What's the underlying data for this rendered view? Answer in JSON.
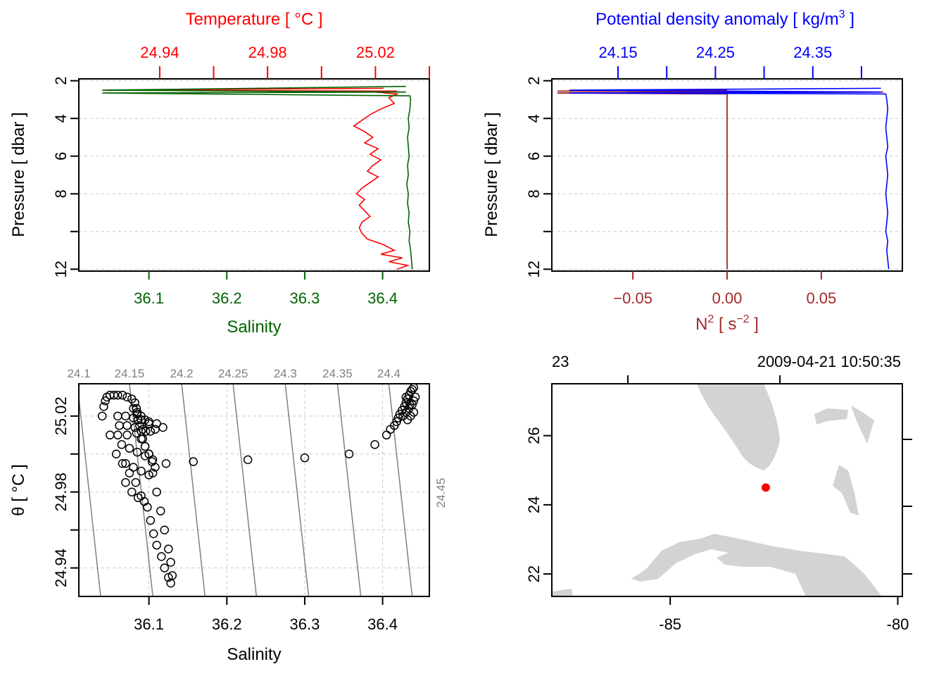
{
  "colors": {
    "temperature": "#ff0000",
    "salinity": "#006400",
    "density": "#0000ff",
    "n2": "#a52a2a",
    "land": "#d3d3d3",
    "station": "#ff0000",
    "isopycnal": "#808080"
  },
  "chart_data": [
    {
      "id": "profile_TS",
      "type": "line",
      "title": "Temperature [ °C ]",
      "xlabel": "Salinity",
      "ylabel": "Pressure [ dbar ]",
      "x_ticks": [
        "36.1",
        "36.2",
        "36.3",
        "36.4"
      ],
      "x_top_ticks": [
        "24.94",
        "24.98",
        "25.02"
      ],
      "y_ticks": [
        "2",
        "4",
        "6",
        "8",
        "12"
      ],
      "ylim": [
        12.1,
        1.9
      ],
      "salinity_xlim": [
        36.01,
        36.46
      ],
      "temperature_xlim": [
        24.91,
        25.04
      ],
      "series": [
        {
          "name": "Temperature",
          "color": "#ff0000",
          "pressure": [
            2.4,
            2.5,
            2.55,
            2.6,
            2.7,
            2.9,
            3.2,
            3.5,
            3.8,
            4.1,
            4.4,
            4.7,
            5.0,
            5.3,
            5.6,
            5.9,
            6.2,
            6.5,
            6.8,
            7.1,
            7.4,
            7.7,
            8.0,
            8.3,
            8.6,
            8.9,
            9.2,
            9.5,
            9.8,
            10.1,
            10.4,
            10.7,
            11.0,
            11.2,
            11.4,
            11.6,
            11.8,
            12.0
          ],
          "temperature": [
            25.023,
            24.92,
            25.028,
            25.02,
            25.028,
            25.025,
            25.027,
            25.022,
            25.018,
            25.015,
            25.012,
            25.016,
            25.019,
            25.016,
            25.021,
            25.018,
            25.022,
            25.019,
            25.017,
            25.021,
            25.018,
            25.015,
            25.013,
            25.016,
            25.014,
            25.016,
            25.018,
            25.015,
            25.014,
            25.015,
            25.017,
            25.023,
            25.027,
            25.022,
            25.03,
            25.025,
            25.032,
            25.028
          ]
        },
        {
          "name": "Salinity",
          "color": "#006400",
          "pressure": [
            2.3,
            2.5,
            2.6,
            2.65,
            2.8,
            3.0,
            3.5,
            4.0,
            4.5,
            5.0,
            5.5,
            6.0,
            6.5,
            7.0,
            7.5,
            8.0,
            8.5,
            9.0,
            9.5,
            10.0,
            10.5,
            11.0,
            11.5,
            12.0
          ],
          "salinity": [
            36.43,
            36.04,
            36.43,
            36.04,
            36.435,
            36.436,
            36.435,
            36.433,
            36.434,
            36.432,
            36.433,
            36.434,
            36.432,
            36.433,
            36.431,
            36.433,
            36.432,
            36.434,
            36.433,
            36.435,
            36.434,
            36.436,
            36.437,
            36.438
          ]
        }
      ]
    },
    {
      "id": "profile_density_N2",
      "type": "line",
      "title": "Potential density anomaly [ kg/m",
      "title_sup": "3",
      "title_end": " ]",
      "xlabel": "N",
      "xlabel_sup": "2",
      "xlabel_mid": " [ s",
      "xlabel_sup2": "−2",
      "xlabel_end": " ]",
      "ylabel": "Pressure [ dbar ]",
      "x_ticks": [
        "−0.05",
        "0.00",
        "0.05"
      ],
      "x_top_ticks": [
        "24.15",
        "24.25",
        "24.35"
      ],
      "y_ticks": [
        "2",
        "4",
        "6",
        "8",
        "12"
      ],
      "ylim": [
        12.1,
        1.9
      ],
      "n2_xlim": [
        -0.093,
        0.093
      ],
      "density_xlim": [
        24.082,
        24.442
      ],
      "series": [
        {
          "name": "Potential density anomaly",
          "color": "#0000ff",
          "pressure": [
            2.4,
            2.5,
            2.6,
            2.65,
            2.7,
            3.0,
            3.5,
            4.0,
            4.5,
            5.0,
            5.5,
            6.0,
            6.5,
            7.0,
            7.5,
            8.0,
            8.5,
            9.0,
            9.5,
            10.0,
            10.5,
            11.0,
            11.5,
            12.0
          ],
          "density": [
            24.42,
            24.1,
            24.42,
            24.1,
            24.425,
            24.426,
            24.427,
            24.426,
            24.425,
            24.426,
            24.427,
            24.425,
            24.426,
            24.427,
            24.426,
            24.425,
            24.426,
            24.427,
            24.426,
            24.425,
            24.427,
            24.426,
            24.427,
            24.428
          ]
        },
        {
          "name": "N2",
          "color": "#a52a2a",
          "pressure": [
            2.5,
            2.55,
            2.6,
            2.65,
            2.7,
            3.0,
            4.0,
            6.0,
            8.0,
            10.0,
            12.0
          ],
          "n2": [
            0.0,
            -0.09,
            0.083,
            -0.09,
            0.0,
            0.0,
            0.0,
            0.0,
            0.0,
            0.0,
            0.0
          ]
        }
      ]
    },
    {
      "id": "ts_diagram",
      "type": "scatter",
      "xlabel": "Salinity",
      "ylabel": "θ [ °C ]",
      "x_ticks": [
        "36.1",
        "36.2",
        "36.3",
        "36.4"
      ],
      "y_ticks": [
        "24.94",
        "24.98",
        "25.02"
      ],
      "xlim": [
        36.01,
        36.46
      ],
      "ylim": [
        24.925,
        25.037
      ],
      "isopycnal_labels": [
        "24.1",
        "24.15",
        "24.2",
        "24.25",
        "24.3",
        "24.35",
        "24.4",
        "24.45"
      ],
      "isopycnal_bottom_salinity": [
        36.038,
        36.105,
        36.172,
        36.238,
        36.305,
        36.372,
        36.438,
        36.505
      ],
      "isopycnal_top_salinity": [
        36.008,
        36.075,
        36.142,
        36.208,
        36.275,
        36.342,
        36.408,
        36.475
      ],
      "points": {
        "salinity": [
          36.04,
          36.042,
          36.044,
          36.046,
          36.05,
          36.055,
          36.06,
          36.066,
          36.072,
          36.078,
          36.082,
          36.084,
          36.085,
          36.086,
          36.088,
          36.09,
          36.092,
          36.095,
          36.1,
          36.105,
          36.11,
          36.115,
          36.12,
          36.125,
          36.128,
          36.13,
          36.05,
          36.058,
          36.066,
          36.075,
          36.083,
          36.09,
          36.098,
          36.102,
          36.106,
          36.11,
          36.116,
          36.12,
          36.125,
          36.128,
          36.06,
          36.07,
          36.08,
          36.09,
          36.1,
          36.11,
          36.06,
          36.072,
          36.084,
          36.096,
          36.108,
          36.118,
          36.065,
          36.075,
          36.085,
          36.095,
          36.105,
          36.07,
          36.08,
          36.09,
          36.1,
          36.062,
          36.072,
          36.082,
          36.092,
          36.102,
          36.09,
          36.095,
          36.1,
          36.104,
          36.108,
          36.08,
          36.085,
          36.09,
          36.095,
          36.1,
          36.07,
          36.078,
          36.086,
          36.094,
          36.122,
          36.157,
          36.227,
          36.3,
          36.357,
          36.39,
          36.405,
          36.41,
          36.415,
          36.418,
          36.42,
          36.422,
          36.425,
          36.428,
          36.43,
          36.432,
          36.434,
          36.436,
          36.438,
          36.44,
          36.426,
          36.43,
          36.434,
          36.438,
          36.44,
          36.442,
          36.432,
          36.436,
          36.44,
          36.435,
          36.43
        ],
        "theta": [
          25.02,
          25.025,
          25.028,
          25.03,
          25.031,
          25.031,
          25.031,
          25.031,
          25.03,
          25.029,
          25.027,
          25.024,
          25.021,
          25.018,
          25.015,
          25.012,
          25.008,
          25.004,
          25.0,
          24.99,
          24.98,
          24.97,
          24.96,
          24.95,
          24.943,
          24.936,
          25.01,
          25.0,
          24.995,
          24.99,
          24.985,
          24.978,
          24.972,
          24.965,
          24.958,
          24.952,
          24.946,
          24.94,
          24.935,
          24.932,
          25.02,
          25.02,
          25.019,
          25.018,
          25.017,
          25.016,
          25.01,
          25.01,
          25.011,
          25.012,
          25.013,
          25.014,
          25.005,
          25.003,
          25.001,
          24.999,
          24.997,
          24.995,
          24.993,
          24.991,
          24.989,
          25.015,
          25.015,
          25.014,
          25.013,
          25.012,
          25.008,
          25.004,
          25.0,
          24.996,
          24.993,
          25.024,
          25.022,
          25.02,
          25.018,
          25.016,
          24.985,
          24.98,
          24.977,
          24.975,
          24.995,
          24.996,
          24.997,
          24.998,
          25.0,
          25.005,
          25.01,
          25.013,
          25.015,
          25.017,
          25.019,
          25.021,
          25.023,
          25.025,
          25.027,
          25.029,
          25.031,
          25.033,
          25.034,
          25.035,
          25.02,
          25.022,
          25.024,
          25.026,
          25.028,
          25.03,
          25.018,
          25.02,
          25.022,
          25.026,
          25.03
        ]
      }
    },
    {
      "id": "station_map",
      "type": "scatter",
      "top_left_label": "23",
      "top_right_label": "2009-04-21 10:50:35",
      "x_ticks": [
        "-85",
        "-80"
      ],
      "y_ticks": [
        "22",
        "24",
        "26"
      ],
      "xlim": [
        -87.6,
        -79.9
      ],
      "ylim": [
        21.35,
        27.5
      ],
      "station": {
        "longitude": -82.9,
        "latitude": 24.5
      }
    }
  ]
}
